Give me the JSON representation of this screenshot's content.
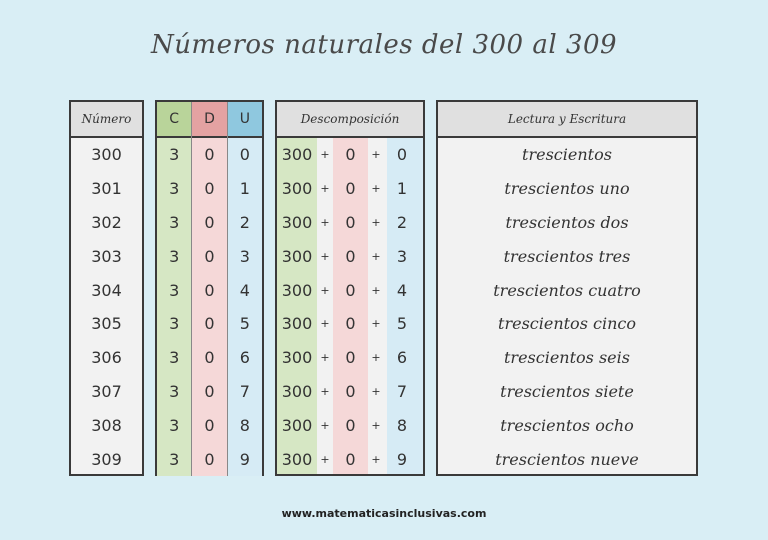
{
  "title": "Números naturales del 300 al 309",
  "headers": {
    "numero": "Número",
    "c": "C",
    "d": "D",
    "u": "U",
    "descomposicion": "Descomposición",
    "lectura": "Lectura y Escritura"
  },
  "colors": {
    "background": "#d9eef5",
    "centenas": "#b9d49a",
    "decenas": "#e4a2a2",
    "unidades": "#8fc8df"
  },
  "rows": [
    {
      "numero": "300",
      "c": "3",
      "d": "0",
      "u": "0",
      "dec_c": "300",
      "plus1": "+",
      "dec_d": "0",
      "plus2": "+",
      "dec_u": "0",
      "lectura": "trescientos"
    },
    {
      "numero": "301",
      "c": "3",
      "d": "0",
      "u": "1",
      "dec_c": "300",
      "plus1": "+",
      "dec_d": "0",
      "plus2": "+",
      "dec_u": "1",
      "lectura": "trescientos uno"
    },
    {
      "numero": "302",
      "c": "3",
      "d": "0",
      "u": "2",
      "dec_c": "300",
      "plus1": "+",
      "dec_d": "0",
      "plus2": "+",
      "dec_u": "2",
      "lectura": "trescientos dos"
    },
    {
      "numero": "303",
      "c": "3",
      "d": "0",
      "u": "3",
      "dec_c": "300",
      "plus1": "+",
      "dec_d": "0",
      "plus2": "+",
      "dec_u": "3",
      "lectura": "trescientos tres"
    },
    {
      "numero": "304",
      "c": "3",
      "d": "0",
      "u": "4",
      "dec_c": "300",
      "plus1": "+",
      "dec_d": "0",
      "plus2": "+",
      "dec_u": "4",
      "lectura": "trescientos cuatro"
    },
    {
      "numero": "305",
      "c": "3",
      "d": "0",
      "u": "5",
      "dec_c": "300",
      "plus1": "+",
      "dec_d": "0",
      "plus2": "+",
      "dec_u": "5",
      "lectura": "trescientos cinco"
    },
    {
      "numero": "306",
      "c": "3",
      "d": "0",
      "u": "6",
      "dec_c": "300",
      "plus1": "+",
      "dec_d": "0",
      "plus2": "+",
      "dec_u": "6",
      "lectura": "trescientos seis"
    },
    {
      "numero": "307",
      "c": "3",
      "d": "0",
      "u": "7",
      "dec_c": "300",
      "plus1": "+",
      "dec_d": "0",
      "plus2": "+",
      "dec_u": "7",
      "lectura": "trescientos siete"
    },
    {
      "numero": "308",
      "c": "3",
      "d": "0",
      "u": "8",
      "dec_c": "300",
      "plus1": "+",
      "dec_d": "0",
      "plus2": "+",
      "dec_u": "8",
      "lectura": "trescientos ocho"
    },
    {
      "numero": "309",
      "c": "3",
      "d": "0",
      "u": "9",
      "dec_c": "300",
      "plus1": "+",
      "dec_d": "0",
      "plus2": "+",
      "dec_u": "9",
      "lectura": "trescientos nueve"
    }
  ],
  "footer": "www.matematicasinclusivas.com"
}
